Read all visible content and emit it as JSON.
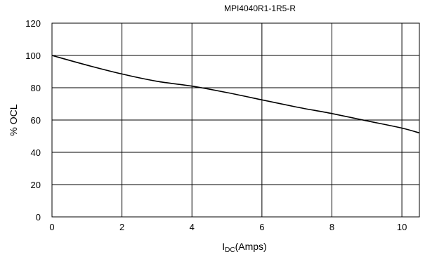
{
  "chart_data": {
    "type": "line",
    "title": "MPI4040R1-1R5-R",
    "xlabel_main": "I",
    "xlabel_sub": "DC",
    "xlabel_tail": "(Amps)",
    "ylabel": "% OCL",
    "xlim": [
      0,
      10.5
    ],
    "ylim": [
      0,
      120
    ],
    "x_ticks": [
      "0",
      "2",
      "4",
      "6",
      "8",
      "10"
    ],
    "y_ticks": [
      "0",
      "20",
      "40",
      "60",
      "80",
      "100",
      "120"
    ],
    "grid": true,
    "series": [
      {
        "x": [
          0,
          1,
          2,
          3,
          4,
          5,
          6,
          7,
          8,
          9,
          10,
          10.5
        ],
        "y": [
          100,
          94,
          88.5,
          84,
          81,
          77,
          72.5,
          68,
          64,
          59.5,
          55,
          52
        ],
        "color": "#000000"
      }
    ]
  }
}
